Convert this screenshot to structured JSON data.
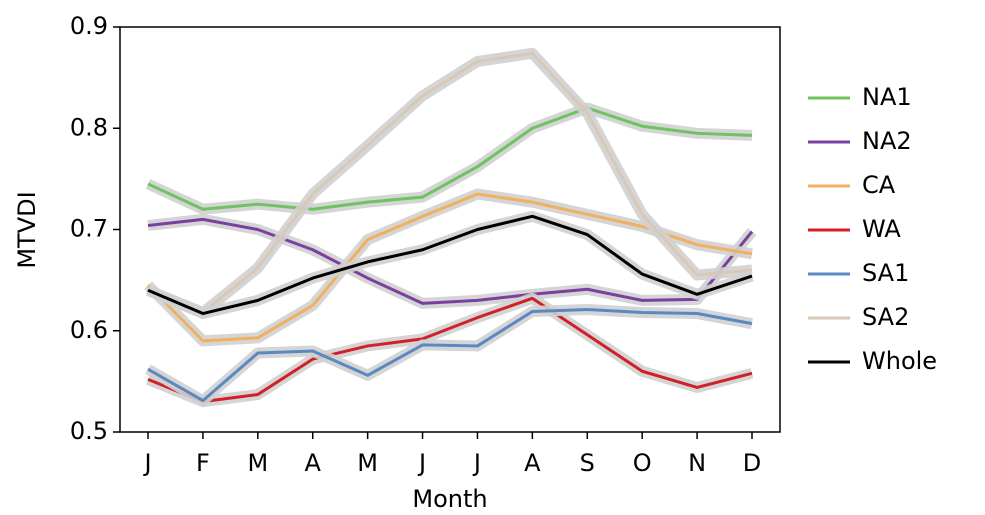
{
  "chart_data": {
    "type": "line",
    "xlabel": "Month",
    "ylabel": "MTVDI",
    "categories": [
      "J",
      "F",
      "M",
      "A",
      "M",
      "J",
      "J",
      "A",
      "S",
      "O",
      "N",
      "D"
    ],
    "ylim": [
      0.5,
      0.9
    ],
    "yticks": [
      0.5,
      0.6,
      0.7,
      0.8,
      0.9
    ],
    "legend": "outside-right",
    "series": [
      {
        "name": "NA1",
        "color": "#6cc35f",
        "values": [
          0.745,
          0.72,
          0.725,
          0.72,
          0.727,
          0.732,
          0.762,
          0.8,
          0.82,
          0.802,
          0.795,
          0.793
        ]
      },
      {
        "name": "NA2",
        "color": "#7b3fa0",
        "values": [
          0.704,
          0.71,
          0.7,
          0.68,
          0.652,
          0.627,
          0.63,
          0.636,
          0.641,
          0.63,
          0.631,
          0.698
        ]
      },
      {
        "name": "CA",
        "color": "#f0b060",
        "values": [
          0.645,
          0.59,
          0.593,
          0.625,
          0.69,
          0.713,
          0.735,
          0.727,
          0.715,
          0.703,
          0.685,
          0.676
        ]
      },
      {
        "name": "WA",
        "color": "#d0202a",
        "values": [
          0.552,
          0.53,
          0.537,
          0.572,
          0.585,
          0.592,
          0.613,
          0.632,
          0.596,
          0.56,
          0.544,
          0.558
        ]
      },
      {
        "name": "SA1",
        "color": "#5a88c0",
        "values": [
          0.562,
          0.531,
          0.578,
          0.58,
          0.556,
          0.586,
          0.585,
          0.619,
          0.621,
          0.618,
          0.617,
          0.607
        ]
      },
      {
        "name": "SA2",
        "color": "#d8c8b8",
        "values": [
          0.64,
          0.618,
          0.662,
          0.735,
          0.783,
          0.832,
          0.866,
          0.874,
          0.815,
          0.715,
          0.655,
          0.66
        ]
      },
      {
        "name": "Whole",
        "color": "#000000",
        "values": [
          0.64,
          0.617,
          0.63,
          0.652,
          0.668,
          0.68,
          0.7,
          0.713,
          0.695,
          0.656,
          0.636,
          0.654
        ]
      }
    ]
  }
}
